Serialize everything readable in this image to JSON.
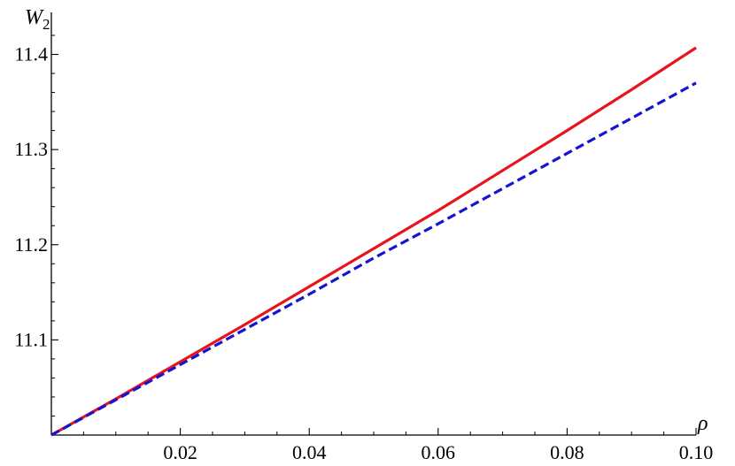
{
  "chart_data": {
    "type": "line",
    "xlabel": "ρ",
    "ylabel": {
      "main": "W",
      "sub": "2"
    },
    "xlim": [
      0.0,
      0.1
    ],
    "ylim": [
      11.0,
      11.42
    ],
    "x_ticks": [
      {
        "value": 0.02,
        "label": "0.02"
      },
      {
        "value": 0.04,
        "label": "0.04"
      },
      {
        "value": 0.06,
        "label": "0.06"
      },
      {
        "value": 0.08,
        "label": "0.08"
      },
      {
        "value": 0.1,
        "label": "0.10"
      }
    ],
    "y_ticks": [
      {
        "value": 11.1,
        "label": "11.1"
      },
      {
        "value": 11.2,
        "label": "11.2"
      },
      {
        "value": 11.3,
        "label": "11.3"
      },
      {
        "value": 11.4,
        "label": "11.4"
      }
    ],
    "grid": false,
    "series": [
      {
        "color": "#e8141c",
        "style": "solid",
        "x": [
          0.0,
          0.01,
          0.02,
          0.03,
          0.04,
          0.05,
          0.06,
          0.07,
          0.08,
          0.09,
          0.1
        ],
        "y": [
          11.0,
          11.038,
          11.077,
          11.116,
          11.156,
          11.196,
          11.236,
          11.278,
          11.32,
          11.363,
          11.407
        ]
      },
      {
        "color": "#1414d2",
        "style": "dashed",
        "x": [
          0.0,
          0.01,
          0.02,
          0.03,
          0.04,
          0.05,
          0.06,
          0.07,
          0.08,
          0.09,
          0.1
        ],
        "y": [
          11.0,
          11.037,
          11.074,
          11.111,
          11.148,
          11.186,
          11.222,
          11.259,
          11.296,
          11.333,
          11.37
        ]
      }
    ]
  }
}
